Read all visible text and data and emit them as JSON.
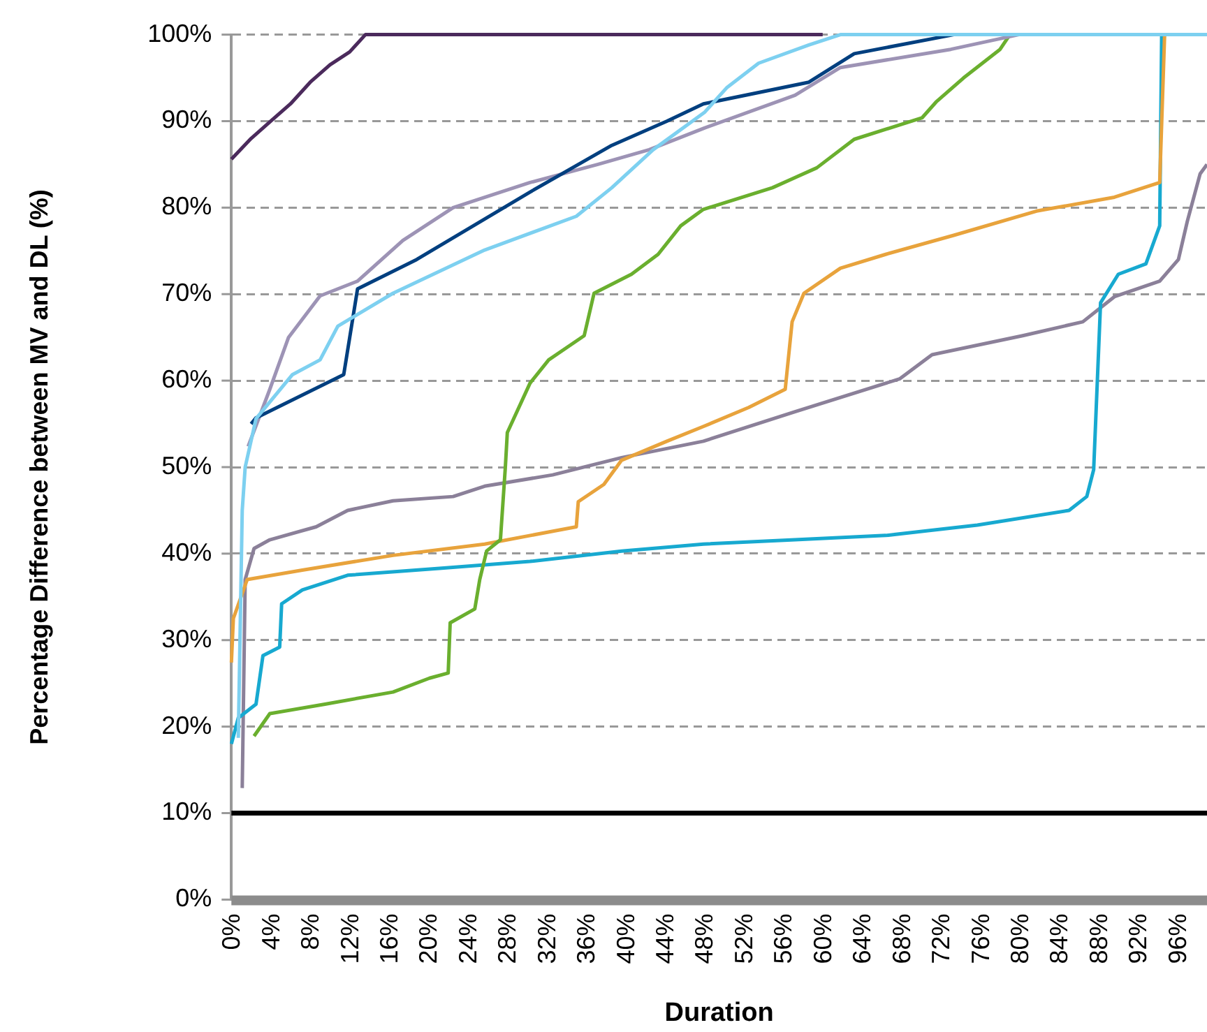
{
  "chart_data": {
    "type": "line",
    "xlabel": "Duration",
    "ylabel": "Percentage Difference between MV and DL (%)",
    "xlim": [
      0,
      99
    ],
    "ylim": [
      0,
      100
    ],
    "xticks": [
      {
        "value": 0,
        "label": "0%"
      },
      {
        "value": 4,
        "label": "4%"
      },
      {
        "value": 8,
        "label": "8%"
      },
      {
        "value": 12,
        "label": "12%"
      },
      {
        "value": 16,
        "label": "16%"
      },
      {
        "value": 20,
        "label": "20%"
      },
      {
        "value": 24,
        "label": "24%"
      },
      {
        "value": 28,
        "label": "28%"
      },
      {
        "value": 32,
        "label": "32%"
      },
      {
        "value": 36,
        "label": "36%"
      },
      {
        "value": 40,
        "label": "40%"
      },
      {
        "value": 44,
        "label": "44%"
      },
      {
        "value": 48,
        "label": "48%"
      },
      {
        "value": 52,
        "label": "52%"
      },
      {
        "value": 56,
        "label": "56%"
      },
      {
        "value": 60,
        "label": "60%"
      },
      {
        "value": 64,
        "label": "64%"
      },
      {
        "value": 68,
        "label": "68%"
      },
      {
        "value": 72,
        "label": "72%"
      },
      {
        "value": 76,
        "label": "76%"
      },
      {
        "value": 80,
        "label": "80%"
      },
      {
        "value": 84,
        "label": "84%"
      },
      {
        "value": 88,
        "label": "88%"
      },
      {
        "value": 92,
        "label": "92%"
      },
      {
        "value": 96,
        "label": "96%"
      }
    ],
    "yticks": [
      {
        "value": 0,
        "label": "0%"
      },
      {
        "value": 10,
        "label": "10%"
      },
      {
        "value": 20,
        "label": "20%"
      },
      {
        "value": 30,
        "label": "30%"
      },
      {
        "value": 40,
        "label": "40%"
      },
      {
        "value": 50,
        "label": "50%"
      },
      {
        "value": 60,
        "label": "60%"
      },
      {
        "value": 70,
        "label": "70%"
      },
      {
        "value": 80,
        "label": "80%"
      },
      {
        "value": 90,
        "label": "90%"
      },
      {
        "value": 100,
        "label": "100%"
      }
    ],
    "grid": "y",
    "line_style": "solid",
    "ref_lines": [
      {
        "axis": "y",
        "value": 10,
        "color": "#000000"
      }
    ],
    "series": [
      {
        "color": "#4b2a5c",
        "x": [
          0,
          2,
          4,
          6,
          8,
          10,
          12,
          13.6,
          60
        ],
        "values": [
          85.6,
          88,
          90,
          92,
          94.5,
          96.5,
          98,
          100,
          100
        ]
      },
      {
        "color": "#8b8099",
        "x": [
          1.1,
          1.4,
          2.3,
          3.9,
          8.6,
          11.8,
          16.4,
          22.5,
          25.7,
          32.6,
          39.6,
          47.9,
          57.2,
          67.8,
          71.1,
          80.3,
          86.4,
          89.6,
          94.2,
          96.1,
          97,
          98.3,
          99
        ],
        "values": [
          12.9,
          37,
          40.6,
          41.6,
          43.1,
          45,
          46.1,
          46.6,
          47.8,
          49.1,
          51.1,
          53,
          56.4,
          60.2,
          63,
          65.2,
          66.8,
          69.7,
          71.5,
          74,
          78.4,
          83.9,
          85
        ]
      },
      {
        "color": "#17a9d0",
        "x": [
          0,
          0.7,
          2.5,
          3.2,
          4.9,
          5.1,
          7.2,
          11.8,
          21.1,
          30.3,
          39.6,
          47.9,
          57.2,
          66.4,
          75.7,
          85,
          86.8,
          87.5,
          88.2,
          90,
          92.8,
          94.2,
          94.4
        ],
        "values": [
          18,
          21,
          22.6,
          28.2,
          29.2,
          34.2,
          35.8,
          37.5,
          38.3,
          39.1,
          40.3,
          41.1,
          41.6,
          42.1,
          43.3,
          45,
          46.6,
          49.7,
          69,
          72.3,
          73.5,
          77.9,
          100
        ]
      },
      {
        "color": "#e8a33c",
        "x": [
          0,
          0.2,
          1.6,
          7.2,
          16.4,
          25.7,
          35,
          35.2,
          37.8,
          39.6,
          44.2,
          47.9,
          52.5,
          56.2,
          56.9,
          58.1,
          61.8,
          66.4,
          73.3,
          81.7,
          89.6,
          94.2,
          94.7
        ],
        "values": [
          27.4,
          32.5,
          37,
          38.1,
          39.8,
          41.1,
          43.1,
          46,
          48,
          50.8,
          53,
          54.7,
          56.9,
          59,
          66.8,
          70.1,
          73,
          74.6,
          76.8,
          79.6,
          81.2,
          82.9,
          100
        ]
      },
      {
        "color": "#6aaf2e",
        "x": [
          2.3,
          3.9,
          9.5,
          16.4,
          20.1,
          22,
          22.2,
          24.7,
          25.2,
          25.9,
          27.3,
          27.8,
          28,
          30.3,
          32.2,
          35.8,
          36.8,
          40.6,
          43.3,
          45.6,
          47.9,
          54.9,
          59.4,
          63.2,
          70.1,
          71.5,
          74.3,
          78,
          79
        ],
        "values": [
          18.9,
          21.5,
          22.6,
          24,
          25.6,
          26.2,
          32,
          33.6,
          37,
          40.3,
          41.6,
          50,
          54,
          59.7,
          62.4,
          65.2,
          70.1,
          72.3,
          74.6,
          77.9,
          79.8,
          82.3,
          84.6,
          87.9,
          90.4,
          92.2,
          95,
          98.3,
          100
        ]
      },
      {
        "color": "#9d93b5",
        "x": [
          1.7,
          3.9,
          5.8,
          9,
          12.8,
          17.4,
          22.5,
          30.3,
          37.2,
          42.4,
          48,
          57.2,
          61.8,
          73,
          79.9
        ],
        "values": [
          52.4,
          59,
          65,
          69.8,
          71.5,
          76.2,
          80,
          82.9,
          85,
          86.7,
          89.2,
          93,
          96.2,
          98.3,
          100
        ]
      },
      {
        "color": "#003f7f",
        "x": [
          2,
          2.5,
          11.4,
          12.8,
          18.8,
          24.7,
          30.3,
          38.6,
          44.2,
          47.9,
          58.6,
          63.2,
          73.3
        ],
        "values": [
          55,
          55.7,
          60.7,
          70.6,
          74,
          78,
          81.8,
          87.2,
          90,
          92,
          94.5,
          97.8,
          100
        ]
      },
      {
        "color": "#7dd0f0",
        "x": [
          0.7,
          1.1,
          1.4,
          2.5,
          6.2,
          9,
          10.8,
          16.4,
          25.7,
          35,
          38.6,
          42.8,
          48,
          50.3,
          53.5,
          58.6,
          61.8,
          99
        ],
        "values": [
          18.7,
          45,
          50,
          55.6,
          60.7,
          62.4,
          66.3,
          70.1,
          75.1,
          79,
          82.3,
          86.7,
          91,
          93.9,
          96.7,
          98.8,
          100,
          100
        ]
      }
    ]
  }
}
